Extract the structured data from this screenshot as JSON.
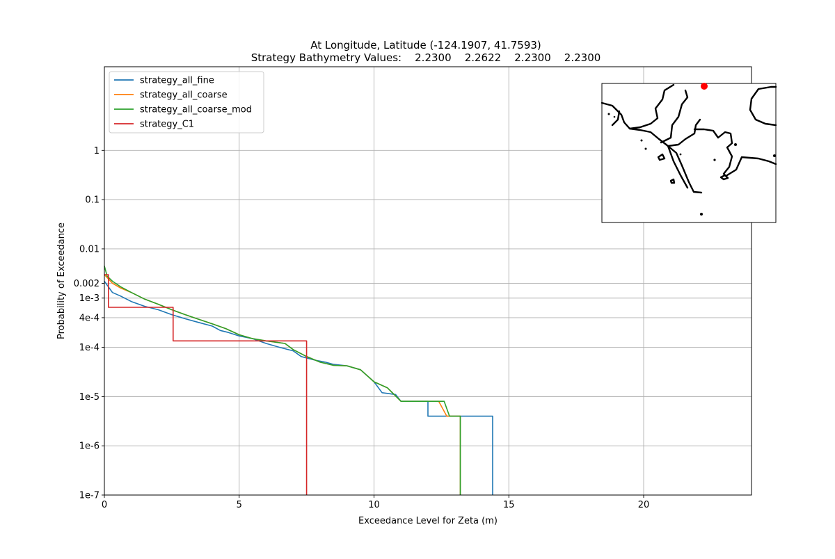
{
  "chart_data": {
    "type": "line",
    "title": "At Longitude, Latitude (-124.1907,  41.7593)",
    "subtitle": "Strategy Bathymetry Values:    2.2300    2.2622    2.2300    2.2300",
    "xlabel": "Exceedance Level for Zeta (m)",
    "ylabel": "Probability of Exceedance",
    "xlim": [
      0,
      24
    ],
    "ylim": [
      1e-07,
      50
    ],
    "yscale": "log",
    "grid": true,
    "legend_position": "top-left",
    "x_ticks": [
      {
        "value": 0,
        "label": "0"
      },
      {
        "value": 5,
        "label": "5"
      },
      {
        "value": 10,
        "label": "10"
      },
      {
        "value": 15,
        "label": "15"
      },
      {
        "value": 20,
        "label": "20"
      }
    ],
    "y_ticks": [
      {
        "value": 1,
        "label": "1"
      },
      {
        "value": 0.1,
        "label": "0.1"
      },
      {
        "value": 0.01,
        "label": "0.01"
      },
      {
        "value": 0.002,
        "label": "0.002"
      },
      {
        "value": 0.001,
        "label": "1e-3"
      },
      {
        "value": 0.0004,
        "label": "4e-4"
      },
      {
        "value": 0.0001,
        "label": "1e-4"
      },
      {
        "value": 1e-05,
        "label": "1e-5"
      },
      {
        "value": 1e-06,
        "label": "1e-6"
      },
      {
        "value": 1e-07,
        "label": "1e-7"
      }
    ],
    "series": [
      {
        "name": "strategy_all_fine",
        "color": "#1f77b4",
        "points": [
          [
            0,
            0.0022
          ],
          [
            0.3,
            0.0013
          ],
          [
            0.6,
            0.0011
          ],
          [
            1.0,
            0.00085
          ],
          [
            1.5,
            0.00068
          ],
          [
            2.0,
            0.00058
          ],
          [
            2.5,
            0.00046
          ],
          [
            3.0,
            0.00038
          ],
          [
            3.5,
            0.00032
          ],
          [
            4.0,
            0.00027
          ],
          [
            4.3,
            0.00022
          ],
          [
            4.6,
            0.0002
          ],
          [
            5.0,
            0.00017
          ],
          [
            5.5,
            0.00015
          ],
          [
            6.0,
            0.00012
          ],
          [
            6.5,
            0.0001
          ],
          [
            7.0,
            8.5e-05
          ],
          [
            7.3,
            6.5e-05
          ],
          [
            7.8,
            5.5e-05
          ],
          [
            8.2,
            5e-05
          ],
          [
            8.5,
            4.5e-05
          ],
          [
            9.0,
            4.2e-05
          ],
          [
            9.5,
            3.5e-05
          ],
          [
            9.8,
            2.5e-05
          ],
          [
            10.0,
            2e-05
          ],
          [
            10.3,
            1.2e-05
          ],
          [
            10.8,
            1.1e-05
          ],
          [
            11.0,
            8e-06
          ],
          [
            11.5,
            8e-06
          ],
          [
            12.0,
            8e-06
          ],
          [
            12.0,
            4e-06
          ],
          [
            13.0,
            4e-06
          ],
          [
            14.4,
            4e-06
          ],
          [
            14.4,
            1e-07
          ]
        ]
      },
      {
        "name": "strategy_all_coarse",
        "color": "#ff7f0e",
        "points": [
          [
            0,
            0.003
          ],
          [
            0.3,
            0.002
          ],
          [
            0.6,
            0.0016
          ],
          [
            1.0,
            0.0013
          ],
          [
            1.5,
            0.00095
          ],
          [
            2.0,
            0.00075
          ],
          [
            2.5,
            0.00058
          ],
          [
            3.0,
            0.00046
          ],
          [
            3.5,
            0.00037
          ],
          [
            4.0,
            0.0003
          ],
          [
            4.5,
            0.00024
          ],
          [
            5.0,
            0.00018
          ],
          [
            5.5,
            0.00015
          ],
          [
            6.0,
            0.000135
          ],
          [
            6.7,
            0.00012
          ],
          [
            7.0,
            9e-05
          ],
          [
            7.5,
            6.5e-05
          ],
          [
            8.0,
            5e-05
          ],
          [
            8.5,
            4.3e-05
          ],
          [
            9.0,
            4.2e-05
          ],
          [
            9.5,
            3.5e-05
          ],
          [
            10.0,
            2e-05
          ],
          [
            10.5,
            1.5e-05
          ],
          [
            11.0,
            8e-06
          ],
          [
            12.0,
            8e-06
          ],
          [
            12.4,
            8e-06
          ],
          [
            12.7,
            4e-06
          ],
          [
            13.2,
            4e-06
          ],
          [
            13.2,
            1e-07
          ]
        ]
      },
      {
        "name": "strategy_all_coarse_mod",
        "color": "#2ca02c",
        "points": [
          [
            0,
            0.0045
          ],
          [
            0.1,
            0.0028
          ],
          [
            0.3,
            0.0022
          ],
          [
            0.6,
            0.0017
          ],
          [
            1.0,
            0.0013
          ],
          [
            1.5,
            0.00095
          ],
          [
            2.0,
            0.00075
          ],
          [
            2.5,
            0.00058
          ],
          [
            3.0,
            0.00046
          ],
          [
            3.5,
            0.00037
          ],
          [
            4.0,
            0.0003
          ],
          [
            4.5,
            0.00024
          ],
          [
            5.0,
            0.00018
          ],
          [
            5.5,
            0.00015
          ],
          [
            6.0,
            0.000135
          ],
          [
            6.7,
            0.00012
          ],
          [
            7.0,
            9e-05
          ],
          [
            7.5,
            6.5e-05
          ],
          [
            8.0,
            5e-05
          ],
          [
            8.5,
            4.3e-05
          ],
          [
            9.0,
            4.2e-05
          ],
          [
            9.5,
            3.5e-05
          ],
          [
            10.0,
            2e-05
          ],
          [
            10.5,
            1.5e-05
          ],
          [
            11.0,
            8e-06
          ],
          [
            12.0,
            8e-06
          ],
          [
            12.6,
            8e-06
          ],
          [
            12.8,
            4e-06
          ],
          [
            13.2,
            4e-06
          ],
          [
            13.2,
            1e-07
          ]
        ]
      },
      {
        "name": "strategy_C1",
        "color": "#d62728",
        "points": [
          [
            0,
            0.003
          ],
          [
            0.15,
            0.003
          ],
          [
            0.15,
            0.00065
          ],
          [
            2.55,
            0.00065
          ],
          [
            2.55,
            0.000135
          ],
          [
            7.5,
            0.000135
          ],
          [
            7.5,
            1e-07
          ]
        ]
      }
    ],
    "inset_map": {
      "marker_color": "#ff0000",
      "coast_color": "#000000"
    }
  }
}
